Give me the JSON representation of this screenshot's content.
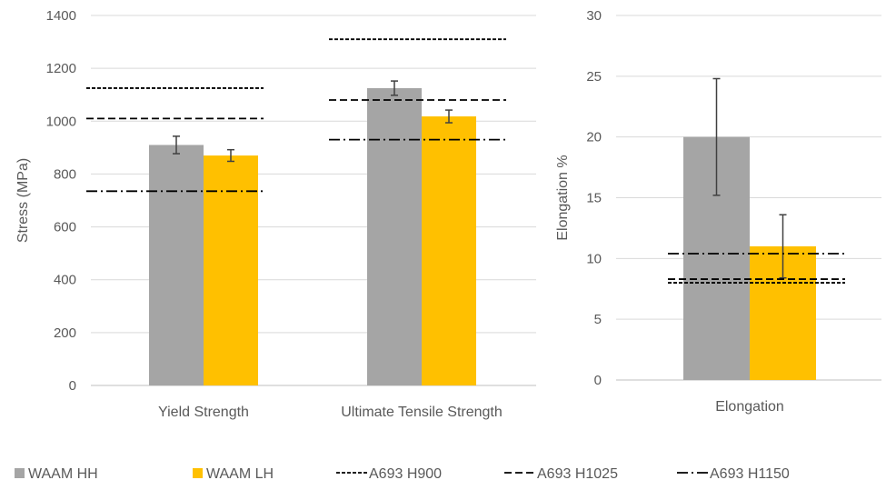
{
  "colors": {
    "hh": "#a5a5a5",
    "lh": "#ffc000",
    "grid": "#d9d9d9",
    "axis": "#bfbfbf",
    "reference": "#000000",
    "error": "#404040",
    "text": "#595959"
  },
  "legend": {
    "placement": "bottom",
    "items": [
      {
        "label": "WAAM HH",
        "kind": "bar",
        "color": "#a5a5a5"
      },
      {
        "label": "WAAM LH",
        "kind": "bar",
        "color": "#ffc000"
      },
      {
        "label": "A693 H900",
        "kind": "line",
        "style": "short-dash"
      },
      {
        "label": "A693 H1025",
        "kind": "line",
        "style": "dash"
      },
      {
        "label": "A693 H1150",
        "kind": "line",
        "style": "dash-dot"
      }
    ]
  },
  "chart_data": [
    {
      "type": "bar",
      "ylabel": "Stress (MPa)",
      "ylim": [
        0,
        1400
      ],
      "yticks": [
        0,
        200,
        400,
        600,
        800,
        1000,
        1200,
        1400
      ],
      "grid": true,
      "categories": [
        "Yield Strength",
        "Ultimate Tensile Strength"
      ],
      "series": [
        {
          "name": "WAAM HH",
          "values": [
            910,
            1125
          ],
          "errors": [
            33,
            27
          ]
        },
        {
          "name": "WAAM LH",
          "values": [
            870,
            1018
          ],
          "errors": [
            22,
            24
          ]
        }
      ],
      "reference_lines": [
        {
          "name": "A693 H900",
          "values": [
            1125,
            1310
          ]
        },
        {
          "name": "A693 H1025",
          "values": [
            1010,
            1080
          ]
        },
        {
          "name": "A693 H1150",
          "values": [
            735,
            930
          ]
        }
      ]
    },
    {
      "type": "bar",
      "ylabel": "Elongation %",
      "ylim": [
        0,
        30
      ],
      "yticks": [
        0,
        5,
        10,
        15,
        20,
        25,
        30
      ],
      "grid": true,
      "categories": [
        "Elongation"
      ],
      "series": [
        {
          "name": "WAAM HH",
          "values": [
            20
          ],
          "errors": [
            4.8
          ]
        },
        {
          "name": "WAAM LH",
          "values": [
            11
          ],
          "errors": [
            2.6
          ]
        }
      ],
      "reference_lines": [
        {
          "name": "A693 H900",
          "values": [
            8.0
          ]
        },
        {
          "name": "A693 H1025",
          "values": [
            8.3
          ]
        },
        {
          "name": "A693 H1150",
          "values": [
            10.4
          ]
        }
      ]
    }
  ]
}
